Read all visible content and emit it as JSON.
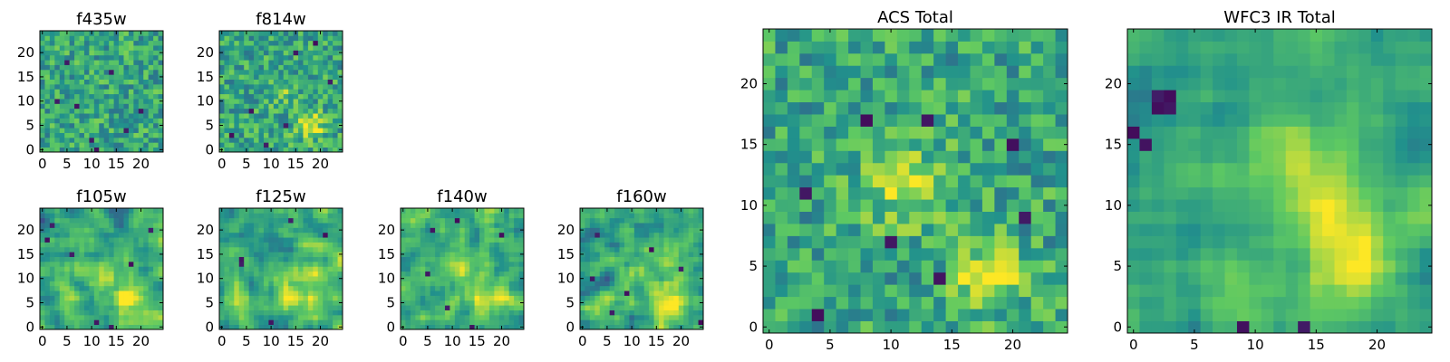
{
  "figure": {
    "colormap": [
      "#440154",
      "#3b528b",
      "#21918c",
      "#5ec962",
      "#fde725"
    ]
  },
  "chart_data": [
    {
      "type": "heatmap",
      "title": "f435w",
      "grid": [
        25,
        25
      ],
      "xlim": [
        0,
        24
      ],
      "ylim": [
        0,
        24
      ],
      "xticks": [
        "0",
        "5",
        "10",
        "15",
        "20"
      ],
      "yticks": [
        "0",
        "5",
        "10",
        "15",
        "20"
      ],
      "texture": "fine-noise",
      "peaks": [],
      "dark_pixels": [
        [
          3,
          10
        ],
        [
          7,
          9
        ],
        [
          10,
          2
        ],
        [
          14,
          16
        ],
        [
          20,
          8
        ],
        [
          11,
          0
        ],
        [
          5,
          18
        ],
        [
          17,
          4
        ]
      ]
    },
    {
      "type": "heatmap",
      "title": "f814w",
      "grid": [
        25,
        25
      ],
      "xlim": [
        0,
        24
      ],
      "ylim": [
        0,
        24
      ],
      "xticks": [
        "0",
        "5",
        "10",
        "15",
        "20"
      ],
      "yticks": [
        "0",
        "5",
        "10",
        "15",
        "20"
      ],
      "texture": "fine-noise",
      "peaks": [
        {
          "x": 18,
          "y": 5,
          "radius": 2,
          "strength": 0.8
        },
        {
          "x": 12,
          "y": 12,
          "radius": 2,
          "strength": 0.4
        }
      ],
      "dark_pixels": [
        [
          2,
          3
        ],
        [
          9,
          1
        ],
        [
          15,
          20
        ],
        [
          22,
          14
        ],
        [
          6,
          8
        ],
        [
          19,
          22
        ],
        [
          13,
          5
        ]
      ]
    },
    {
      "type": "heatmap",
      "title": "f105w",
      "grid": [
        25,
        25
      ],
      "xlim": [
        0,
        24
      ],
      "ylim": [
        0,
        24
      ],
      "xticks": [
        "0",
        "5",
        "10",
        "15",
        "20"
      ],
      "yticks": [
        "0",
        "5",
        "10",
        "15",
        "20"
      ],
      "texture": "blocky-noise",
      "peaks": [
        {
          "x": 18,
          "y": 5,
          "radius": 2.5,
          "strength": 0.9
        },
        {
          "x": 12,
          "y": 12,
          "radius": 3,
          "strength": 0.5
        }
      ],
      "dark_pixels": [
        [
          2,
          21
        ],
        [
          1,
          18
        ],
        [
          22,
          20
        ],
        [
          14,
          0
        ],
        [
          11,
          1
        ],
        [
          18,
          13
        ],
        [
          6,
          15
        ]
      ]
    },
    {
      "type": "heatmap",
      "title": "f125w",
      "grid": [
        25,
        25
      ],
      "xlim": [
        0,
        24
      ],
      "ylim": [
        0,
        24
      ],
      "xticks": [
        "0",
        "5",
        "10",
        "15",
        "20"
      ],
      "yticks": [
        "0",
        "5",
        "10",
        "15",
        "20"
      ],
      "texture": "blocky-noise",
      "peaks": [
        {
          "x": 16,
          "y": 8,
          "radius": 4,
          "strength": 0.7
        },
        {
          "x": 3,
          "y": 5,
          "radius": 3,
          "strength": 0.5
        }
      ],
      "dark_pixels": [
        [
          4,
          14
        ],
        [
          4,
          13
        ],
        [
          10,
          1
        ],
        [
          21,
          19
        ],
        [
          14,
          22
        ]
      ]
    },
    {
      "type": "heatmap",
      "title": "f140w",
      "grid": [
        25,
        25
      ],
      "xlim": [
        0,
        24
      ],
      "ylim": [
        0,
        24
      ],
      "xticks": [
        "0",
        "5",
        "10",
        "15",
        "20"
      ],
      "yticks": [
        "0",
        "5",
        "10",
        "15",
        "20"
      ],
      "texture": "blocky-noise",
      "peaks": [
        {
          "x": 18,
          "y": 6,
          "radius": 2.5,
          "strength": 0.9
        },
        {
          "x": 12,
          "y": 12,
          "radius": 3,
          "strength": 0.5
        }
      ],
      "dark_pixels": [
        [
          11,
          22
        ],
        [
          6,
          20
        ],
        [
          20,
          19
        ],
        [
          14,
          0
        ],
        [
          5,
          11
        ],
        [
          9,
          4
        ]
      ]
    },
    {
      "type": "heatmap",
      "title": "f160w",
      "grid": [
        25,
        25
      ],
      "xlim": [
        0,
        24
      ],
      "ylim": [
        0,
        24
      ],
      "xticks": [
        "0",
        "5",
        "10",
        "15",
        "20"
      ],
      "yticks": [
        "0",
        "5",
        "10",
        "15",
        "20"
      ],
      "texture": "blocky-noise",
      "peaks": [
        {
          "x": 18,
          "y": 5,
          "radius": 2.5,
          "strength": 0.9
        },
        {
          "x": 13,
          "y": 12,
          "radius": 3,
          "strength": 0.4
        }
      ],
      "dark_pixels": [
        [
          3,
          19
        ],
        [
          2,
          10
        ],
        [
          6,
          3
        ],
        [
          24,
          1
        ],
        [
          14,
          16
        ],
        [
          9,
          7
        ],
        [
          20,
          12
        ]
      ]
    },
    {
      "type": "heatmap",
      "title": "ACS Total",
      "grid": [
        25,
        25
      ],
      "xlim": [
        0,
        24
      ],
      "ylim": [
        0,
        24
      ],
      "xticks": [
        "0",
        "5",
        "10",
        "15",
        "20"
      ],
      "yticks": [
        "0",
        "5",
        "10",
        "15",
        "20"
      ],
      "texture": "medium-noise",
      "peaks": [
        {
          "x": 18,
          "y": 4,
          "radius": 1.8,
          "strength": 0.9
        },
        {
          "x": 11,
          "y": 12,
          "radius": 2.5,
          "strength": 0.6
        }
      ],
      "dark_pixels": [
        [
          8,
          17
        ],
        [
          13,
          17
        ],
        [
          10,
          7
        ],
        [
          3,
          11
        ],
        [
          14,
          4
        ],
        [
          4,
          1
        ],
        [
          21,
          9
        ],
        [
          20,
          15
        ]
      ]
    },
    {
      "type": "heatmap",
      "title": "WFC3 IR Total",
      "grid": [
        25,
        25
      ],
      "xlim": [
        0,
        24
      ],
      "ylim": [
        0,
        24
      ],
      "xticks": [
        "0",
        "5",
        "10",
        "15",
        "20"
      ],
      "yticks": [
        "0",
        "5",
        "10",
        "15",
        "20"
      ],
      "texture": "smooth-noise",
      "peaks": [
        {
          "x": 18,
          "y": 5,
          "radius": 2.5,
          "strength": 1.0
        },
        {
          "x": 13,
          "y": 13,
          "radius": 3.5,
          "strength": 0.75
        }
      ],
      "dark_pixels": [
        [
          2,
          19
        ],
        [
          3,
          19
        ],
        [
          2,
          18
        ],
        [
          3,
          18
        ],
        [
          0,
          16
        ],
        [
          1,
          15
        ],
        [
          14,
          0
        ],
        [
          9,
          0
        ]
      ]
    }
  ]
}
